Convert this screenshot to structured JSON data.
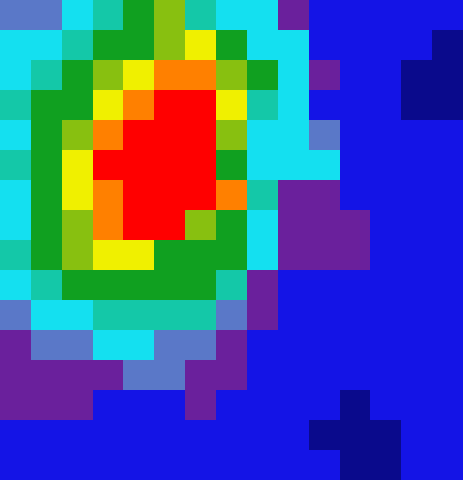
{
  "chart_data": {
    "type": "heatmap",
    "colors": [
      "#0a0a8c",
      "#1414e6",
      "#6a209c",
      "#5a78c8",
      "#14e0f0",
      "#14c8a8",
      "#10a020",
      "#88c010",
      "#f0f000",
      "#ff8000",
      "#ff0000"
    ],
    "tick_labels": false,
    "cells": [
      [
        3,
        3,
        4,
        5,
        6,
        7,
        5,
        4,
        4,
        2,
        1,
        1,
        1,
        1,
        1
      ],
      [
        4,
        4,
        5,
        6,
        6,
        7,
        8,
        6,
        4,
        4,
        1,
        1,
        1,
        1,
        0
      ],
      [
        4,
        5,
        6,
        7,
        8,
        9,
        9,
        7,
        6,
        4,
        2,
        1,
        1,
        0,
        0
      ],
      [
        5,
        6,
        6,
        8,
        9,
        10,
        10,
        8,
        5,
        4,
        1,
        1,
        1,
        0,
        0
      ],
      [
        4,
        6,
        7,
        9,
        10,
        10,
        10,
        7,
        4,
        4,
        3,
        1,
        1,
        1,
        1
      ],
      [
        5,
        6,
        8,
        10,
        10,
        10,
        10,
        6,
        4,
        4,
        4,
        1,
        1,
        1,
        1
      ],
      [
        4,
        6,
        8,
        9,
        10,
        10,
        10,
        9,
        5,
        2,
        2,
        1,
        1,
        1,
        1
      ],
      [
        4,
        6,
        7,
        9,
        10,
        10,
        7,
        6,
        4,
        2,
        2,
        2,
        1,
        1,
        1
      ],
      [
        5,
        6,
        7,
        8,
        8,
        6,
        6,
        6,
        4,
        2,
        2,
        2,
        1,
        1,
        1
      ],
      [
        4,
        5,
        6,
        6,
        6,
        6,
        6,
        5,
        2,
        1,
        1,
        1,
        1,
        1,
        1
      ],
      [
        3,
        4,
        4,
        5,
        5,
        5,
        5,
        3,
        2,
        1,
        1,
        1,
        1,
        1,
        1
      ],
      [
        2,
        3,
        3,
        4,
        4,
        3,
        3,
        2,
        1,
        1,
        1,
        1,
        1,
        1,
        1
      ],
      [
        2,
        2,
        2,
        2,
        3,
        3,
        2,
        2,
        1,
        1,
        1,
        1,
        1,
        1,
        1
      ],
      [
        2,
        2,
        2,
        1,
        1,
        1,
        2,
        1,
        1,
        1,
        1,
        0,
        1,
        1,
        1
      ],
      [
        1,
        1,
        1,
        1,
        1,
        1,
        1,
        1,
        1,
        1,
        0,
        0,
        0,
        1,
        1
      ],
      [
        1,
        1,
        1,
        1,
        1,
        1,
        1,
        1,
        1,
        1,
        1,
        0,
        0,
        1,
        1
      ]
    ]
  }
}
